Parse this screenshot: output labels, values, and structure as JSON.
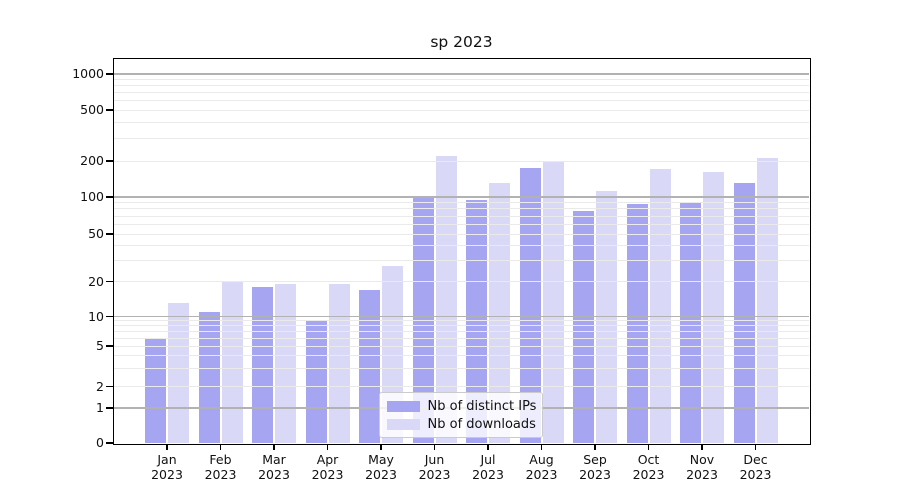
{
  "title": "sp 2023",
  "chart_data": {
    "type": "bar",
    "title": "sp 2023",
    "categories": [
      "Jan 2023",
      "Feb 2023",
      "Mar 2023",
      "Apr 2023",
      "May 2023",
      "Jun 2023",
      "Jul 2023",
      "Aug 2023",
      "Sep 2023",
      "Oct 2023",
      "Nov 2023",
      "Dec 2023"
    ],
    "series": [
      {
        "name": "Nb of distinct IPs",
        "color": "#a5a5f2",
        "values": [
          6,
          11,
          18,
          9,
          17,
          100,
          95,
          175,
          77,
          87,
          91,
          130
        ]
      },
      {
        "name": "Nb of downloads",
        "color": "#d9d9f7",
        "values": [
          13,
          20,
          19,
          19,
          27,
          220,
          130,
          195,
          113,
          170,
          163,
          210
        ]
      }
    ],
    "yscale": "symlog",
    "y_ticks": [
      0,
      1,
      2,
      5,
      10,
      20,
      50,
      100,
      200,
      500,
      1000
    ],
    "ylim": [
      0,
      1150
    ],
    "xlabel": "",
    "ylabel": "",
    "grid": "major and minor horizontal gridlines",
    "legend_position": "lower center"
  },
  "colors": {
    "distinct_ips_bar": "#a5a5f2",
    "downloads_bar": "#d9d9f7",
    "grid_major": "#b2b2b2",
    "grid_minor": "#eaeaea",
    "spine": "#000000",
    "legend_border": "#cbcbcb"
  }
}
